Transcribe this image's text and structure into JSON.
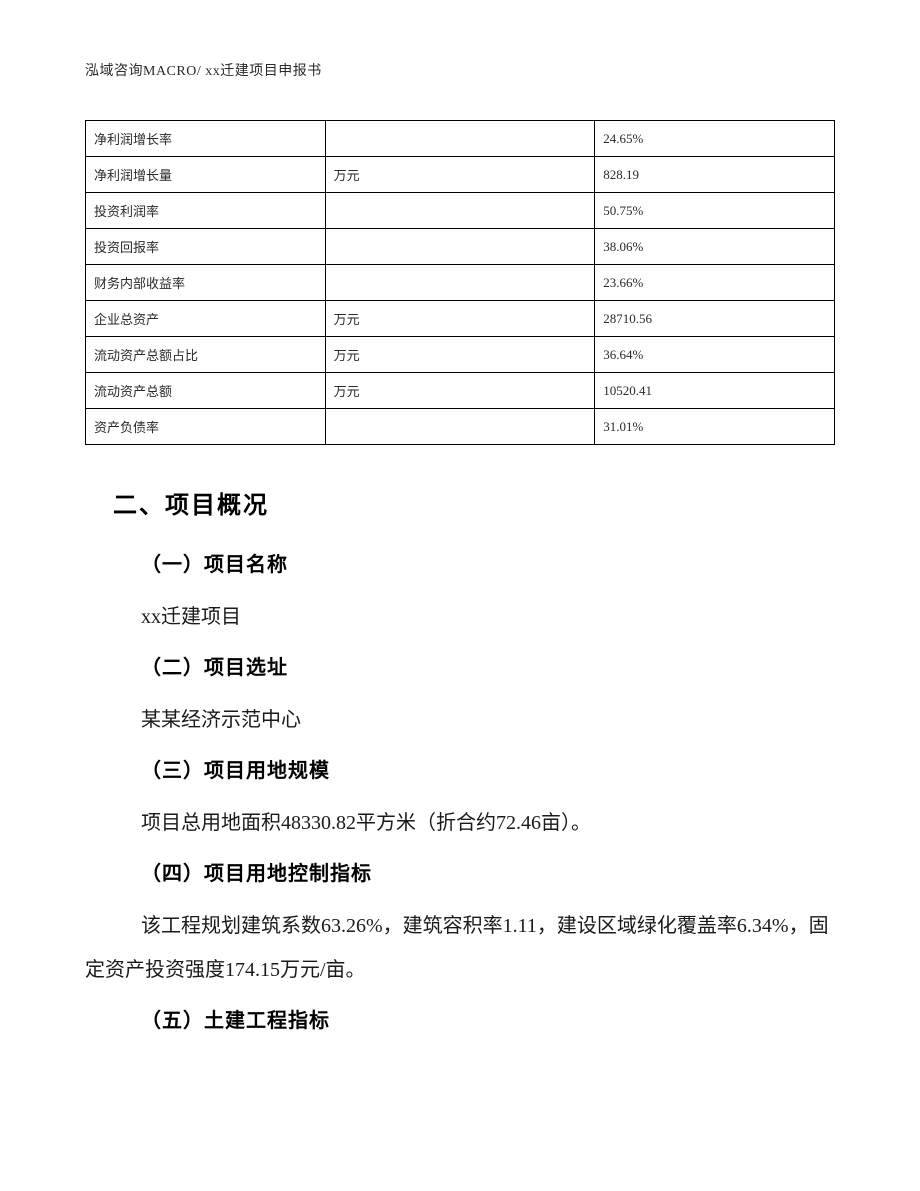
{
  "header": {
    "text": "泓域咨询MACRO/   xx迁建项目申报书"
  },
  "financial_table": {
    "type": "table",
    "columns": [
      "indicator",
      "unit",
      "value"
    ],
    "column_widths_pct": [
      32,
      36,
      32
    ],
    "border_color": "#000000",
    "font_size_pt": 10,
    "rows": [
      {
        "indicator": "净利润增长率",
        "unit": "",
        "value": "24.65%"
      },
      {
        "indicator": "净利润增长量",
        "unit": "万元",
        "value": "828.19"
      },
      {
        "indicator": "投资利润率",
        "unit": "",
        "value": "50.75%"
      },
      {
        "indicator": "投资回报率",
        "unit": "",
        "value": "38.06%"
      },
      {
        "indicator": "财务内部收益率",
        "unit": "",
        "value": "23.66%"
      },
      {
        "indicator": "企业总资产",
        "unit": "万元",
        "value": "28710.56"
      },
      {
        "indicator": "流动资产总额占比",
        "unit": "万元",
        "value": "36.64%"
      },
      {
        "indicator": "流动资产总额",
        "unit": "万元",
        "value": "10520.41"
      },
      {
        "indicator": "资产负债率",
        "unit": "",
        "value": "31.01%"
      }
    ]
  },
  "section": {
    "title": "二、项目概况",
    "items": [
      {
        "heading": "（一）项目名称",
        "body": "xx迁建项目"
      },
      {
        "heading": "（二）项目选址",
        "body": "某某经济示范中心"
      },
      {
        "heading": "（三）项目用地规模",
        "body": "项目总用地面积48330.82平方米（折合约72.46亩）。"
      },
      {
        "heading": "（四）项目用地控制指标",
        "body": "该工程规划建筑系数63.26%，建筑容积率1.11，建设区域绿化覆盖率6.34%，固定资产投资强度174.15万元/亩。"
      },
      {
        "heading": "（五）土建工程指标",
        "body": ""
      }
    ]
  },
  "typography": {
    "heading_font": "SimHei",
    "body_font": "SimSun",
    "heading_size_pt": 18,
    "subheading_size_pt": 15,
    "body_size_pt": 15,
    "line_height": 2.2,
    "text_color": "#1a1a1a",
    "background_color": "#ffffff"
  }
}
